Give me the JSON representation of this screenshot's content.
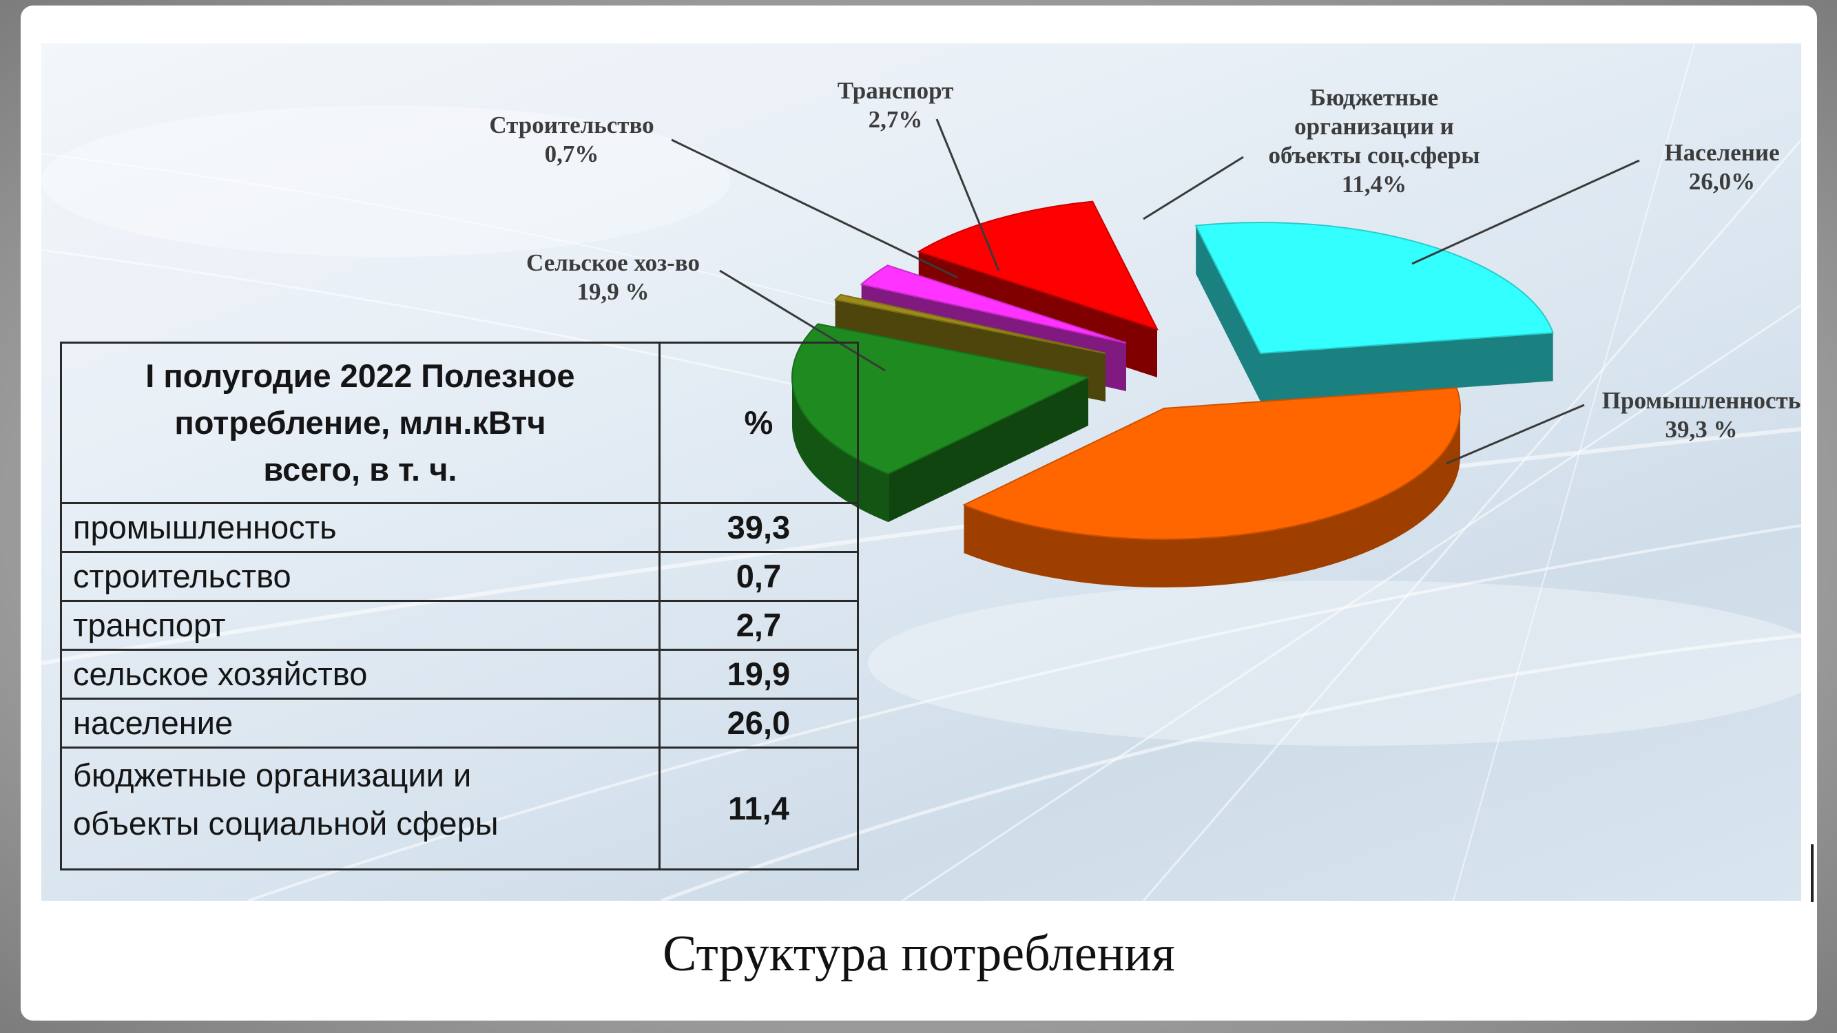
{
  "chart_data": {
    "type": "pie",
    "title": "Структура потребления",
    "slices": [
      {
        "label": "Промышленность",
        "value_label": "39,3 %",
        "value": 39.3,
        "color": "#ff6600"
      },
      {
        "label": "Сельское хоз-во",
        "value_label": "19,9 %",
        "value": 19.9,
        "color": "#1f8a1f"
      },
      {
        "label": "Строительство",
        "value_label": "0,7%",
        "value": 0.7,
        "color": "#9c8a1a"
      },
      {
        "label": "Транспорт",
        "value_label": "2,7%",
        "value": 2.7,
        "color": "#ff33ff"
      },
      {
        "label": "Бюджетные организации и объекты соц.сферы",
        "value_label": "11,4%",
        "value": 11.4,
        "color": "#ff0000"
      },
      {
        "label": "Население",
        "value_label": "26,0%",
        "value": 26.0,
        "color": "#33ffff"
      }
    ]
  },
  "chart_labels": {
    "stroitelstvo": [
      "Строительство",
      "0,7%"
    ],
    "transport": [
      "Транспорт",
      "2,7%"
    ],
    "byudzhet": [
      "Бюджетные",
      "организации и",
      "объекты соц.сферы",
      "11,4%"
    ],
    "naselenie": [
      "Население",
      "26,0%"
    ],
    "selskoe": [
      "Сельское хоз-во",
      "19,9 %"
    ],
    "promyshlennost": [
      "Промышленность",
      "39,3 %"
    ]
  },
  "table": {
    "header_name_lines": [
      "I полугодие 2022 Полезное",
      "потребление, млн.кВтч",
      "всего, в т. ч."
    ],
    "header_pct": "%",
    "rows": [
      {
        "name": "промышленность",
        "value": "39,3"
      },
      {
        "name": "строительство",
        "value": "0,7"
      },
      {
        "name": "транспорт",
        "value": "2,7"
      },
      {
        "name": "сельское хозяйство",
        "value": "19,9"
      },
      {
        "name": "население",
        "value": "26,0"
      }
    ],
    "last_row": {
      "name_lines": [
        "бюджетные организации и",
        "объекты социальной сферы"
      ],
      "value": "11,4"
    }
  },
  "caption": "Структура потребления",
  "colors": {
    "promyshlennost": "#ff6600",
    "selskoe": "#1f8a1f",
    "stroitelstvo": "#9c8a1a",
    "transport": "#ff33ff",
    "byudzhet": "#ff0000",
    "naselenie": "#33ffff"
  }
}
